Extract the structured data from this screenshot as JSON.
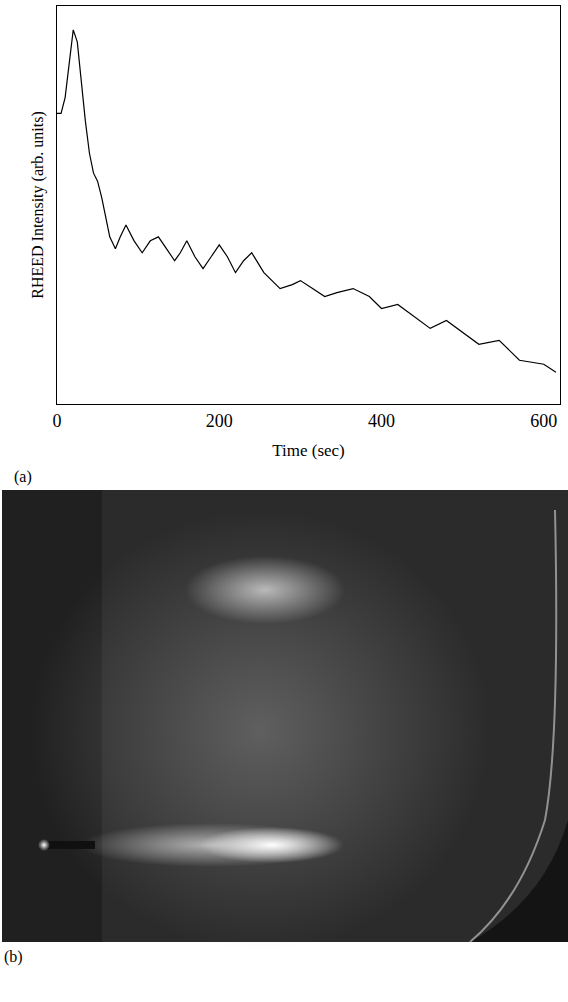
{
  "chart_data": {
    "type": "line",
    "x_label": "Time (sec)",
    "y_label": "RHEED Intensity (arb. units)",
    "annotations": [
      "(a)"
    ],
    "x": [
      0,
      5,
      10,
      15,
      20,
      25,
      30,
      35,
      40,
      45,
      50,
      55,
      60,
      65,
      72,
      78,
      85,
      95,
      105,
      115,
      125,
      135,
      145,
      152,
      160,
      170,
      180,
      190,
      200,
      210,
      220,
      230,
      240,
      255,
      275,
      290,
      300,
      315,
      330,
      345,
      365,
      385,
      400,
      420,
      440,
      460,
      480,
      500,
      520,
      545,
      570,
      600,
      615
    ],
    "values": [
      73,
      73,
      77,
      86,
      94,
      91,
      81,
      71,
      63,
      58,
      56,
      52,
      47,
      42,
      39,
      42,
      45,
      41,
      38,
      41,
      42,
      39,
      36,
      38,
      41,
      37,
      34,
      37,
      40,
      37,
      33,
      36,
      38,
      33,
      29,
      30,
      31,
      29,
      27,
      28,
      29,
      27,
      24,
      25,
      22,
      19,
      21,
      18,
      15,
      16,
      11,
      10,
      8
    ],
    "color": "#000000",
    "xlim": [
      0,
      620
    ],
    "xticks": [
      0,
      200,
      400,
      600
    ],
    "ylim": [
      0,
      100
    ],
    "tick_labels": "x",
    "grid": false
  },
  "image_panel": {
    "label": "(b)"
  }
}
